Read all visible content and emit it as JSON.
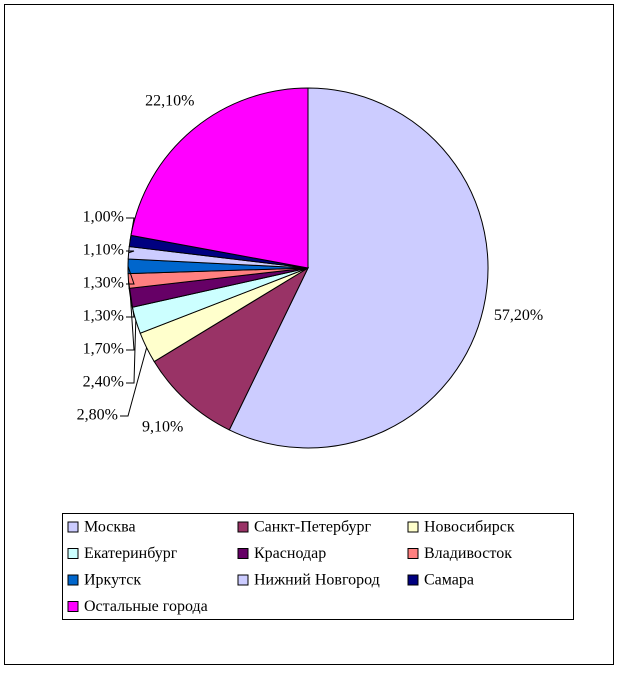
{
  "chart_data": {
    "type": "pie",
    "categories": [
      "Москва",
      "Санкт-Петербург",
      "Новосибирск",
      "Екатеринбург",
      "Краснодар",
      "Владивосток",
      "Иркутск",
      "Нижний Новгород",
      "Самара",
      "Остальные города"
    ],
    "values": [
      57.2,
      9.1,
      2.8,
      2.4,
      1.7,
      1.3,
      1.3,
      1.1,
      1.0,
      22.1
    ],
    "value_labels": [
      "57,20%",
      "9,10%",
      "2,80%",
      "2,40%",
      "1,70%",
      "1,30%",
      "1,30%",
      "1,10%",
      "1,00%",
      "22,10%"
    ],
    "colors": [
      "#ccccff",
      "#993366",
      "#ffffcc",
      "#ccffff",
      "#660066",
      "#ff8080",
      "#0066cc",
      "#ccccff",
      "#000080",
      "#ff00ff"
    ]
  }
}
